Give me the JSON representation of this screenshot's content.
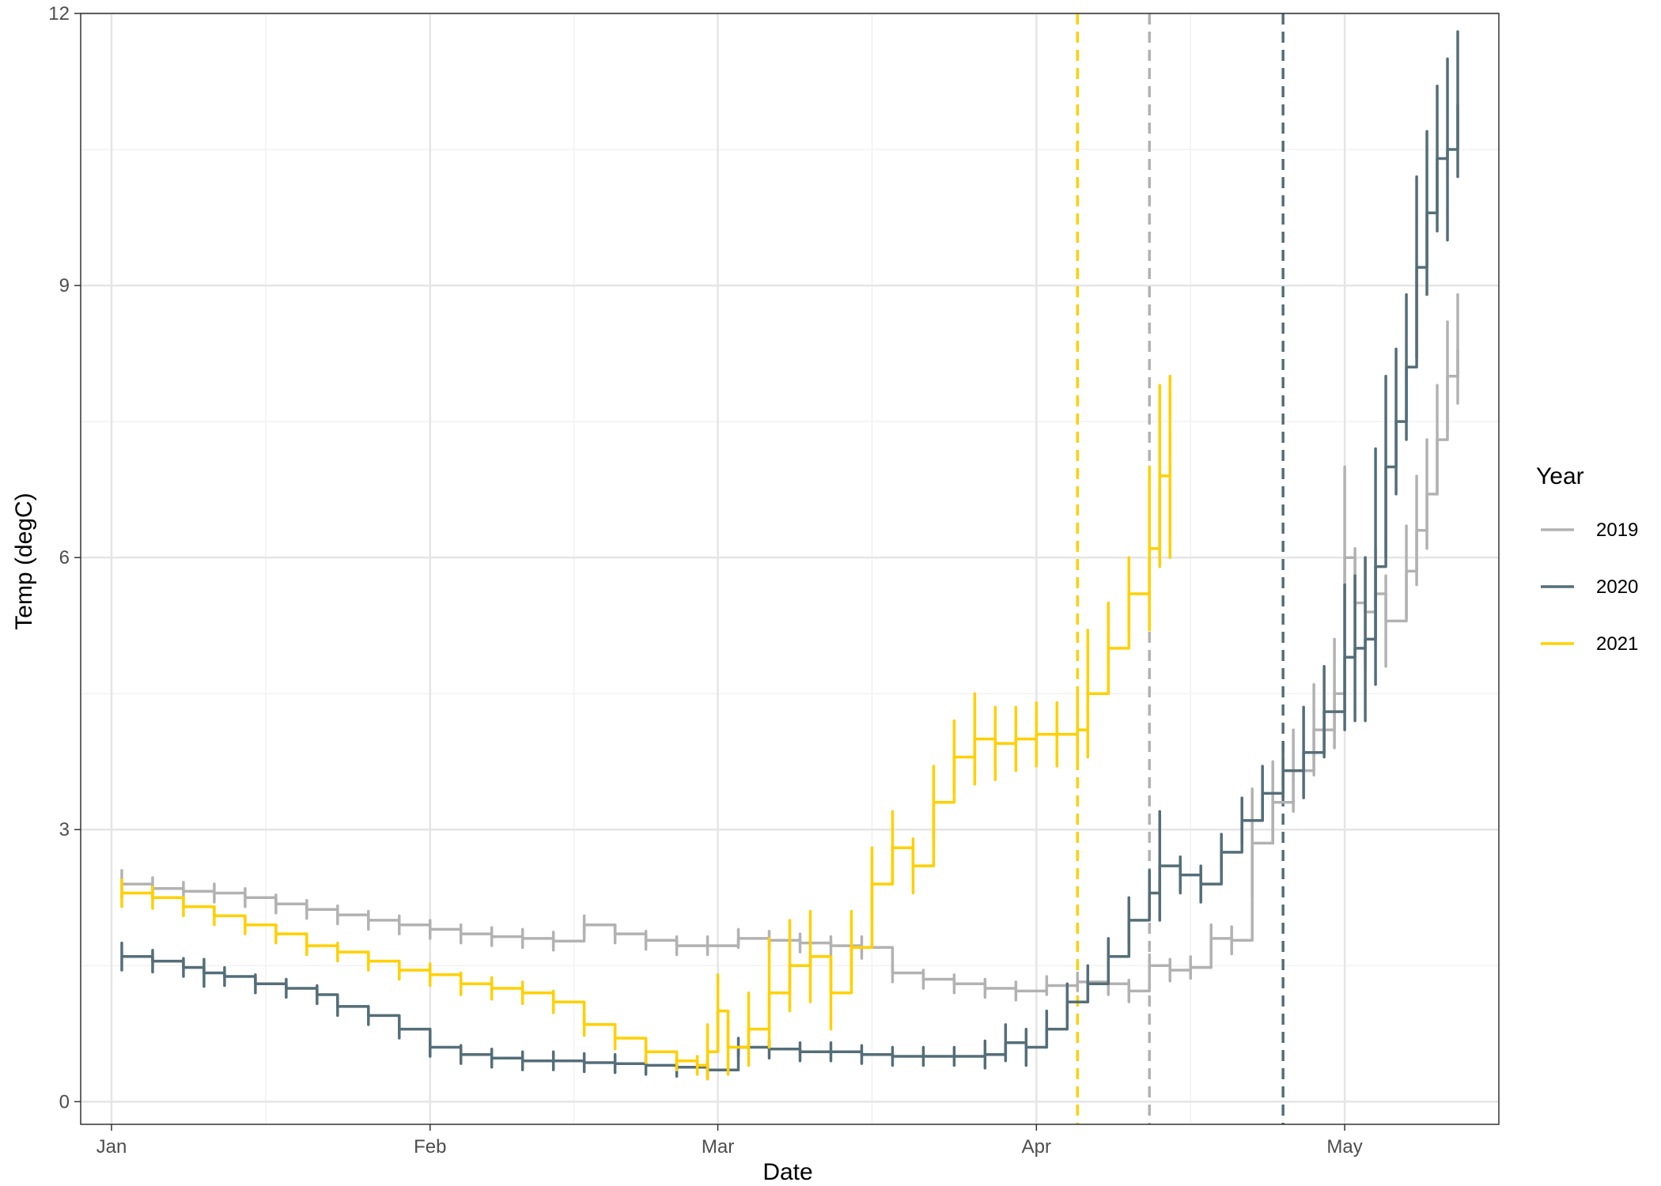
{
  "chart_data": {
    "type": "line",
    "xlabel": "Date",
    "ylabel": "Temp (degC)",
    "x_axis": {
      "scale": "date",
      "range": [
        "2020-12-29",
        "2021-05-16"
      ],
      "ticks": [
        {
          "date": "2021-01-01",
          "label": "Jan"
        },
        {
          "date": "2021-02-01",
          "label": "Feb"
        },
        {
          "date": "2021-03-01",
          "label": "Mar"
        },
        {
          "date": "2021-04-01",
          "label": "Apr"
        },
        {
          "date": "2021-05-01",
          "label": "May"
        }
      ],
      "minor_ticks": [
        "2021-01-16",
        "2021-02-15",
        "2021-03-16",
        "2021-04-16"
      ]
    },
    "y_axis": {
      "range": [
        -0.25,
        12
      ],
      "ticks": [
        0,
        3,
        6,
        9,
        12
      ],
      "minor_ticks": [
        1.5,
        4.5,
        7.5,
        10.5
      ]
    },
    "grid": true,
    "legend": {
      "title": "Year",
      "position": "right"
    },
    "colors": {
      "2019": "#b2b2b2",
      "2020": "#546e78",
      "2021": "#ffd000"
    },
    "series": [
      {
        "name": "2019",
        "color": "#b2b2b2",
        "points": [
          [
            "2021-01-02",
            2.4,
            0.15
          ],
          [
            "2021-01-05",
            2.35,
            0.12
          ],
          [
            "2021-01-08",
            2.32,
            0.1
          ],
          [
            "2021-01-11",
            2.3,
            0.1
          ],
          [
            "2021-01-14",
            2.25,
            0.1
          ],
          [
            "2021-01-17",
            2.18,
            0.1
          ],
          [
            "2021-01-20",
            2.12,
            0.1
          ],
          [
            "2021-01-23",
            2.06,
            0.1
          ],
          [
            "2021-01-26",
            2.0,
            0.1
          ],
          [
            "2021-01-29",
            1.95,
            0.1
          ],
          [
            "2021-02-01",
            1.9,
            0.1
          ],
          [
            "2021-02-04",
            1.85,
            0.1
          ],
          [
            "2021-02-07",
            1.82,
            0.1
          ],
          [
            "2021-02-10",
            1.8,
            0.1
          ],
          [
            "2021-02-13",
            1.77,
            0.1
          ],
          [
            "2021-02-16",
            1.95,
            0.1
          ],
          [
            "2021-02-19",
            1.85,
            0.1
          ],
          [
            "2021-02-22",
            1.78,
            0.1
          ],
          [
            "2021-02-25",
            1.72,
            0.1
          ],
          [
            "2021-02-28",
            1.72,
            0.1
          ],
          [
            "2021-03-03",
            1.8,
            0.1
          ],
          [
            "2021-03-06",
            1.78,
            0.1
          ],
          [
            "2021-03-09",
            1.75,
            0.1
          ],
          [
            "2021-03-12",
            1.72,
            0.1
          ],
          [
            "2021-03-15",
            1.7,
            0.12
          ],
          [
            "2021-03-18",
            1.42,
            0.1
          ],
          [
            "2021-03-21",
            1.35,
            0.1
          ],
          [
            "2021-03-24",
            1.3,
            0.1
          ],
          [
            "2021-03-27",
            1.25,
            0.1
          ],
          [
            "2021-03-30",
            1.22,
            0.1
          ],
          [
            "2021-04-02",
            1.28,
            0.1
          ],
          [
            "2021-04-05",
            1.32,
            0.1
          ],
          [
            "2021-04-08",
            1.3,
            0.12
          ],
          [
            "2021-04-10",
            1.22,
            0.12
          ],
          [
            "2021-04-12",
            1.5,
            0.12
          ],
          [
            "2021-04-14",
            1.45,
            0.12
          ],
          [
            "2021-04-16",
            1.48,
            0.12
          ],
          [
            "2021-04-18",
            1.8,
            0.15
          ],
          [
            "2021-04-20",
            1.78,
            0.15
          ],
          [
            "2021-04-22",
            2.85,
            0.6
          ],
          [
            "2021-04-24",
            3.3,
            0.45
          ],
          [
            "2021-04-26",
            3.65,
            0.45
          ],
          [
            "2021-04-28",
            4.1,
            0.5
          ],
          [
            "2021-04-30",
            4.5,
            0.6
          ],
          [
            "2021-05-01",
            6.0,
            1.0
          ],
          [
            "2021-05-02",
            5.5,
            0.6
          ],
          [
            "2021-05-03",
            5.4,
            0.6
          ],
          [
            "2021-05-04",
            5.6,
            0.5
          ],
          [
            "2021-05-05",
            5.3,
            0.5
          ],
          [
            "2021-05-07",
            5.85,
            0.5
          ],
          [
            "2021-05-08",
            6.3,
            0.6
          ],
          [
            "2021-05-09",
            6.7,
            0.6
          ],
          [
            "2021-05-10",
            7.3,
            0.6
          ],
          [
            "2021-05-11",
            8.0,
            0.6
          ],
          [
            "2021-05-12",
            8.3,
            0.6
          ]
        ]
      },
      {
        "name": "2020",
        "color": "#546e78",
        "points": [
          [
            "2021-01-02",
            1.6,
            0.15
          ],
          [
            "2021-01-05",
            1.55,
            0.12
          ],
          [
            "2021-01-08",
            1.48,
            0.1
          ],
          [
            "2021-01-10",
            1.42,
            0.15
          ],
          [
            "2021-01-12",
            1.38,
            0.1
          ],
          [
            "2021-01-15",
            1.3,
            0.1
          ],
          [
            "2021-01-18",
            1.25,
            0.1
          ],
          [
            "2021-01-21",
            1.18,
            0.1
          ],
          [
            "2021-01-23",
            1.05,
            0.1
          ],
          [
            "2021-01-26",
            0.95,
            0.1
          ],
          [
            "2021-01-29",
            0.8,
            0.1
          ],
          [
            "2021-02-01",
            0.6,
            0.1
          ],
          [
            "2021-02-04",
            0.52,
            0.1
          ],
          [
            "2021-02-07",
            0.48,
            0.1
          ],
          [
            "2021-02-10",
            0.45,
            0.1
          ],
          [
            "2021-02-13",
            0.45,
            0.1
          ],
          [
            "2021-02-16",
            0.43,
            0.1
          ],
          [
            "2021-02-19",
            0.42,
            0.1
          ],
          [
            "2021-02-22",
            0.4,
            0.1
          ],
          [
            "2021-02-25",
            0.38,
            0.1
          ],
          [
            "2021-02-28",
            0.35,
            0.1
          ],
          [
            "2021-03-03",
            0.6,
            0.1
          ],
          [
            "2021-03-06",
            0.58,
            0.1
          ],
          [
            "2021-03-09",
            0.55,
            0.1
          ],
          [
            "2021-03-12",
            0.55,
            0.1
          ],
          [
            "2021-03-15",
            0.52,
            0.1
          ],
          [
            "2021-03-18",
            0.5,
            0.1
          ],
          [
            "2021-03-21",
            0.5,
            0.1
          ],
          [
            "2021-03-24",
            0.5,
            0.1
          ],
          [
            "2021-03-27",
            0.52,
            0.15
          ],
          [
            "2021-03-29",
            0.65,
            0.2
          ],
          [
            "2021-03-31",
            0.6,
            0.2
          ],
          [
            "2021-04-02",
            0.8,
            0.2
          ],
          [
            "2021-04-04",
            1.1,
            0.2
          ],
          [
            "2021-04-06",
            1.3,
            0.2
          ],
          [
            "2021-04-08",
            1.6,
            0.2
          ],
          [
            "2021-04-10",
            2.0,
            0.25
          ],
          [
            "2021-04-12",
            2.3,
            0.25
          ],
          [
            "2021-04-13",
            2.6,
            0.6
          ],
          [
            "2021-04-15",
            2.5,
            0.2
          ],
          [
            "2021-04-17",
            2.4,
            0.2
          ],
          [
            "2021-04-19",
            2.75,
            0.2
          ],
          [
            "2021-04-21",
            3.1,
            0.25
          ],
          [
            "2021-04-23",
            3.4,
            0.3
          ],
          [
            "2021-04-25",
            3.65,
            0.3
          ],
          [
            "2021-04-27",
            3.85,
            0.5
          ],
          [
            "2021-04-29",
            4.3,
            0.5
          ],
          [
            "2021-05-01",
            4.9,
            0.8
          ],
          [
            "2021-05-02",
            5.0,
            0.8
          ],
          [
            "2021-05-03",
            5.1,
            0.9
          ],
          [
            "2021-05-04",
            5.9,
            1.3
          ],
          [
            "2021-05-05",
            7.0,
            1.0
          ],
          [
            "2021-05-06",
            7.5,
            0.8
          ],
          [
            "2021-05-07",
            8.1,
            0.8
          ],
          [
            "2021-05-08",
            9.2,
            1.0
          ],
          [
            "2021-05-09",
            9.8,
            0.9
          ],
          [
            "2021-05-10",
            10.4,
            0.8
          ],
          [
            "2021-05-11",
            10.5,
            1.0
          ],
          [
            "2021-05-12",
            11.0,
            0.8
          ]
        ]
      },
      {
        "name": "2021",
        "color": "#ffd000",
        "points": [
          [
            "2021-01-02",
            2.3,
            0.15
          ],
          [
            "2021-01-05",
            2.25,
            0.12
          ],
          [
            "2021-01-08",
            2.15,
            0.1
          ],
          [
            "2021-01-11",
            2.05,
            0.1
          ],
          [
            "2021-01-14",
            1.95,
            0.1
          ],
          [
            "2021-01-17",
            1.85,
            0.1
          ],
          [
            "2021-01-20",
            1.72,
            0.1
          ],
          [
            "2021-01-23",
            1.65,
            0.1
          ],
          [
            "2021-01-26",
            1.55,
            0.1
          ],
          [
            "2021-01-29",
            1.45,
            0.1
          ],
          [
            "2021-02-01",
            1.4,
            0.12
          ],
          [
            "2021-02-04",
            1.3,
            0.12
          ],
          [
            "2021-02-07",
            1.25,
            0.12
          ],
          [
            "2021-02-10",
            1.2,
            0.12
          ],
          [
            "2021-02-13",
            1.1,
            0.12
          ],
          [
            "2021-02-16",
            0.85,
            0.12
          ],
          [
            "2021-02-19",
            0.7,
            0.12
          ],
          [
            "2021-02-22",
            0.55,
            0.12
          ],
          [
            "2021-02-25",
            0.45,
            0.1
          ],
          [
            "2021-02-27",
            0.4,
            0.1
          ],
          [
            "2021-02-28",
            0.55,
            0.3
          ],
          [
            "2021-03-01",
            1.0,
            0.4
          ],
          [
            "2021-03-02",
            0.6,
            0.3
          ],
          [
            "2021-03-04",
            0.8,
            0.4
          ],
          [
            "2021-03-06",
            1.2,
            0.6
          ],
          [
            "2021-03-08",
            1.5,
            0.5
          ],
          [
            "2021-03-10",
            1.6,
            0.5
          ],
          [
            "2021-03-12",
            1.2,
            0.4
          ],
          [
            "2021-03-14",
            1.7,
            0.4
          ],
          [
            "2021-03-16",
            2.4,
            0.4
          ],
          [
            "2021-03-18",
            2.8,
            0.4
          ],
          [
            "2021-03-20",
            2.6,
            0.3
          ],
          [
            "2021-03-22",
            3.3,
            0.4
          ],
          [
            "2021-03-24",
            3.8,
            0.4
          ],
          [
            "2021-03-26",
            4.0,
            0.5
          ],
          [
            "2021-03-28",
            3.95,
            0.4
          ],
          [
            "2021-03-30",
            4.0,
            0.35
          ],
          [
            "2021-04-01",
            4.05,
            0.35
          ],
          [
            "2021-04-03",
            4.05,
            0.35
          ],
          [
            "2021-04-05",
            4.1,
            0.4
          ],
          [
            "2021-04-06",
            4.5,
            0.7
          ],
          [
            "2021-04-08",
            5.0,
            0.5
          ],
          [
            "2021-04-10",
            5.6,
            0.4
          ],
          [
            "2021-04-12",
            6.1,
            0.9
          ],
          [
            "2021-04-13",
            6.9,
            1.0
          ],
          [
            "2021-04-14",
            7.0,
            1.0
          ]
        ]
      }
    ],
    "reference_lines": [
      {
        "series": "2021",
        "date": "2021-04-05",
        "style": "dashed"
      },
      {
        "series": "2019",
        "date": "2021-04-12",
        "style": "dashed"
      },
      {
        "series": "2020",
        "date": "2021-04-25",
        "style": "dashed"
      }
    ]
  }
}
